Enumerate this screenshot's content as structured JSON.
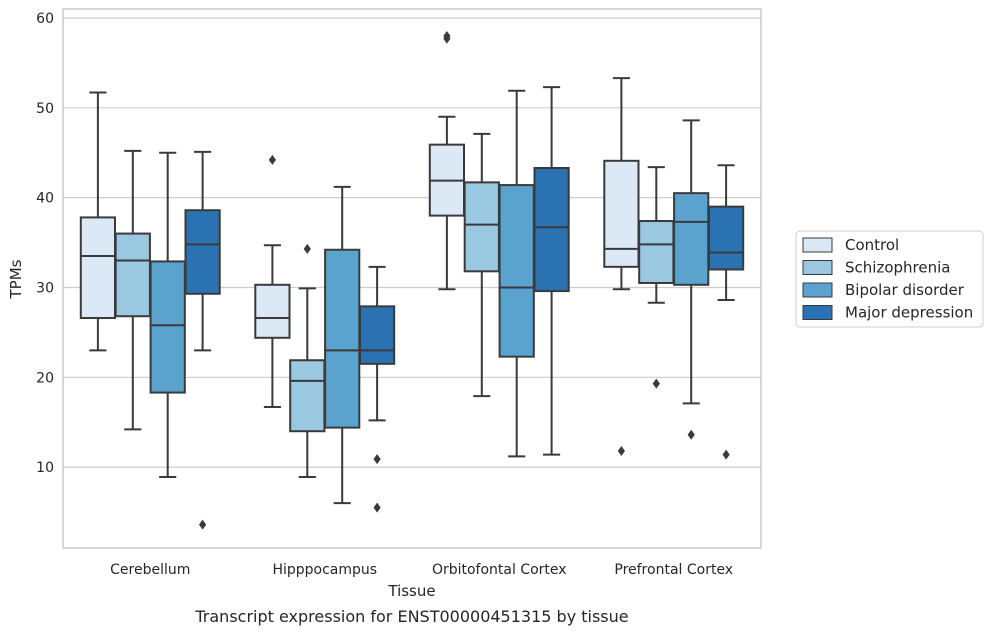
{
  "chart_data": {
    "type": "box",
    "caption": "Transcript expression for ENST00000451315 by tissue",
    "xlabel": "Tissue",
    "ylabel": "TPMs",
    "ylim": [
      1,
      61
    ],
    "yticks": [
      10,
      20,
      30,
      40,
      50,
      60
    ],
    "grid": true,
    "legend_position": "right",
    "categories": [
      "Cerebellum",
      "Hipppocampus",
      "Orbitofontal Cortex",
      "Prefrontal Cortex"
    ],
    "series": [
      {
        "name": "Control",
        "color": "#dbe9f6",
        "boxes": [
          {
            "whisker_low": 23.0,
            "q1": 26.6,
            "median": 33.5,
            "q3": 37.8,
            "whisker_high": 51.7,
            "outliers": []
          },
          {
            "whisker_low": 16.7,
            "q1": 24.4,
            "median": 26.6,
            "q3": 30.3,
            "whisker_high": 34.7,
            "outliers": [
              44.2
            ]
          },
          {
            "whisker_low": 29.8,
            "q1": 38.0,
            "median": 41.9,
            "q3": 45.9,
            "whisker_high": 49.0,
            "outliers": [
              57.7,
              58.0
            ]
          },
          {
            "whisker_low": 29.8,
            "q1": 32.3,
            "median": 34.3,
            "q3": 44.1,
            "whisker_high": 53.3,
            "outliers": [
              11.8
            ]
          }
        ]
      },
      {
        "name": "Schizophrenia",
        "color": "#9ac8e0",
        "boxes": [
          {
            "whisker_low": 14.2,
            "q1": 26.8,
            "median": 33.0,
            "q3": 36.0,
            "whisker_high": 45.2,
            "outliers": []
          },
          {
            "whisker_low": 8.9,
            "q1": 14.0,
            "median": 19.6,
            "q3": 21.9,
            "whisker_high": 29.9,
            "outliers": [
              34.3
            ]
          },
          {
            "whisker_low": 17.9,
            "q1": 31.8,
            "median": 37.0,
            "q3": 41.7,
            "whisker_high": 47.1,
            "outliers": []
          },
          {
            "whisker_low": 28.3,
            "q1": 30.5,
            "median": 34.8,
            "q3": 37.4,
            "whisker_high": 43.4,
            "outliers": [
              19.3
            ]
          }
        ]
      },
      {
        "name": "Bipolar disorder",
        "color": "#5ba3cf",
        "boxes": [
          {
            "whisker_low": 8.9,
            "q1": 18.3,
            "median": 25.8,
            "q3": 32.9,
            "whisker_high": 45.0,
            "outliers": []
          },
          {
            "whisker_low": 6.0,
            "q1": 14.4,
            "median": 23.0,
            "q3": 34.2,
            "whisker_high": 41.2,
            "outliers": []
          },
          {
            "whisker_low": 11.2,
            "q1": 22.3,
            "median": 30.0,
            "q3": 41.4,
            "whisker_high": 51.9,
            "outliers": []
          },
          {
            "whisker_low": 17.1,
            "q1": 30.3,
            "median": 37.3,
            "q3": 40.5,
            "whisker_high": 48.6,
            "outliers": [
              13.6
            ]
          }
        ]
      },
      {
        "name": "Major depression",
        "color": "#2a72b2",
        "boxes": [
          {
            "whisker_low": 23.0,
            "q1": 29.3,
            "median": 34.8,
            "q3": 38.6,
            "whisker_high": 45.1,
            "outliers": [
              3.6
            ]
          },
          {
            "whisker_low": 15.2,
            "q1": 21.5,
            "median": 23.0,
            "q3": 27.9,
            "whisker_high": 32.3,
            "outliers": [
              10.9,
              5.5
            ]
          },
          {
            "whisker_low": 11.4,
            "q1": 29.6,
            "median": 36.7,
            "q3": 43.3,
            "whisker_high": 52.3,
            "outliers": []
          },
          {
            "whisker_low": 28.6,
            "q1": 32.0,
            "median": 33.9,
            "q3": 39.0,
            "whisker_high": 43.6,
            "outliers": [
              11.4
            ]
          }
        ]
      }
    ]
  }
}
